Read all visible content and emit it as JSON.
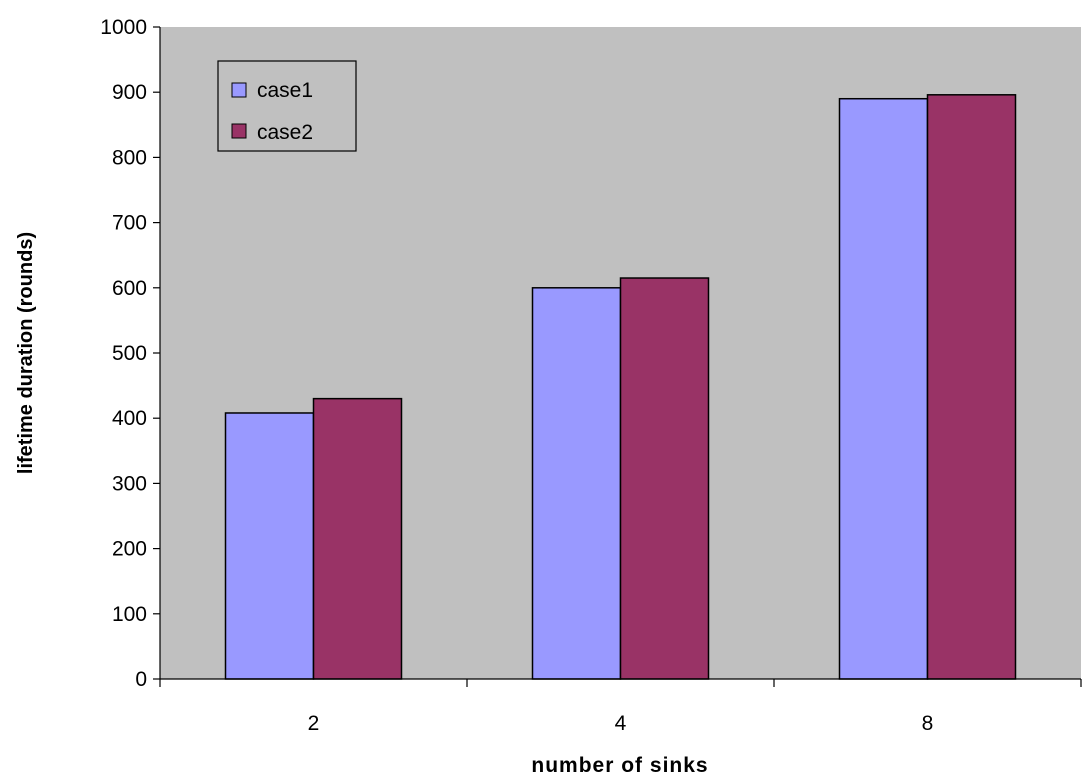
{
  "chart_data": {
    "type": "bar",
    "title": "",
    "xlabel": "number of sinks",
    "ylabel": "lifetime duration (rounds)",
    "categories": [
      "2",
      "4",
      "8"
    ],
    "series": [
      {
        "name": "case1",
        "values": [
          408,
          600,
          890
        ],
        "color": "#9999ff"
      },
      {
        "name": "case2",
        "values": [
          430,
          615,
          896
        ],
        "color": "#993366"
      }
    ],
    "ylim": [
      0,
      1000
    ],
    "yticks": [
      0,
      100,
      200,
      300,
      400,
      500,
      600,
      700,
      800,
      900,
      1000
    ],
    "grid": false,
    "legend_position": "top-left",
    "plot_background": "#c0c0c0"
  }
}
